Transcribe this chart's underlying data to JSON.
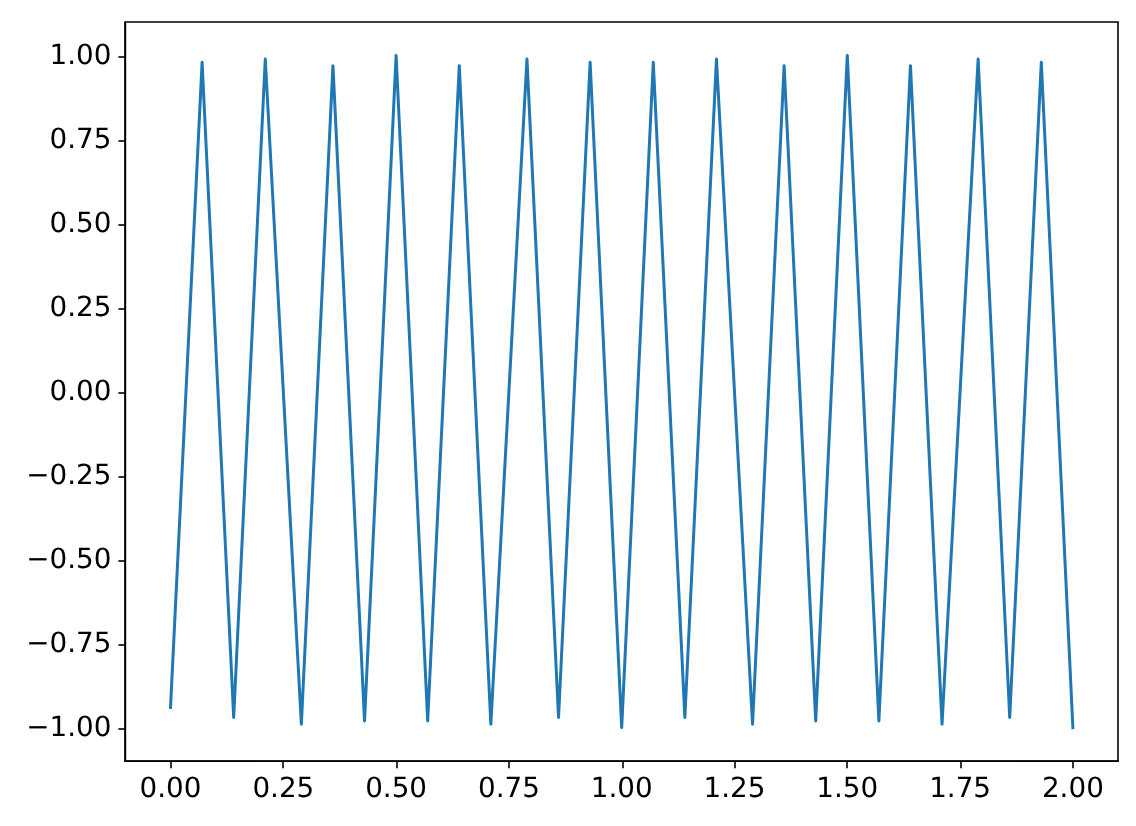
{
  "chart_data": {
    "type": "line",
    "x": [
      0,
      0.07,
      0.14,
      0.21,
      0.29,
      0.36,
      0.43,
      0.5,
      0.57,
      0.64,
      0.71,
      0.79,
      0.86,
      0.93,
      1.0,
      1.07,
      1.14,
      1.21,
      1.29,
      1.36,
      1.43,
      1.5,
      1.57,
      1.64,
      1.71,
      1.79,
      1.86,
      1.93,
      2.0
    ],
    "values": [
      -0.94,
      0.98,
      -0.97,
      0.99,
      -0.99,
      0.97,
      -0.98,
      1.0,
      -0.98,
      0.97,
      -0.99,
      0.99,
      -0.97,
      0.98,
      -1.0,
      0.98,
      -0.97,
      0.99,
      -0.99,
      0.97,
      -0.98,
      1.0,
      -0.98,
      0.97,
      -0.99,
      0.99,
      -0.97,
      0.98,
      -1.0
    ],
    "color": "#1f77b4",
    "xlim": [
      -0.1,
      2.1
    ],
    "ylim": [
      -1.1,
      1.1
    ],
    "xticks": [
      {
        "value": 0,
        "label": "0.00"
      },
      {
        "value": 0.25,
        "label": "0.25"
      },
      {
        "value": 0.5,
        "label": "0.50"
      },
      {
        "value": 0.75,
        "label": "0.75"
      },
      {
        "value": 1,
        "label": "1.00"
      },
      {
        "value": 1.25,
        "label": "1.25"
      },
      {
        "value": 1.5,
        "label": "1.50"
      },
      {
        "value": 1.75,
        "label": "1.75"
      },
      {
        "value": 2,
        "label": "2.00"
      }
    ],
    "yticks": [
      {
        "value": -1,
        "label": "−1.00"
      },
      {
        "value": -0.75,
        "label": "−0.75"
      },
      {
        "value": -0.5,
        "label": "−0.50"
      },
      {
        "value": -0.25,
        "label": "−0.25"
      },
      {
        "value": 0,
        "label": "0.00"
      },
      {
        "value": 0.25,
        "label": "0.25"
      },
      {
        "value": 0.5,
        "label": "0.50"
      },
      {
        "value": 0.75,
        "label": "0.75"
      },
      {
        "value": 1,
        "label": "1.00"
      }
    ],
    "marker": "none",
    "line_style": "solid"
  }
}
